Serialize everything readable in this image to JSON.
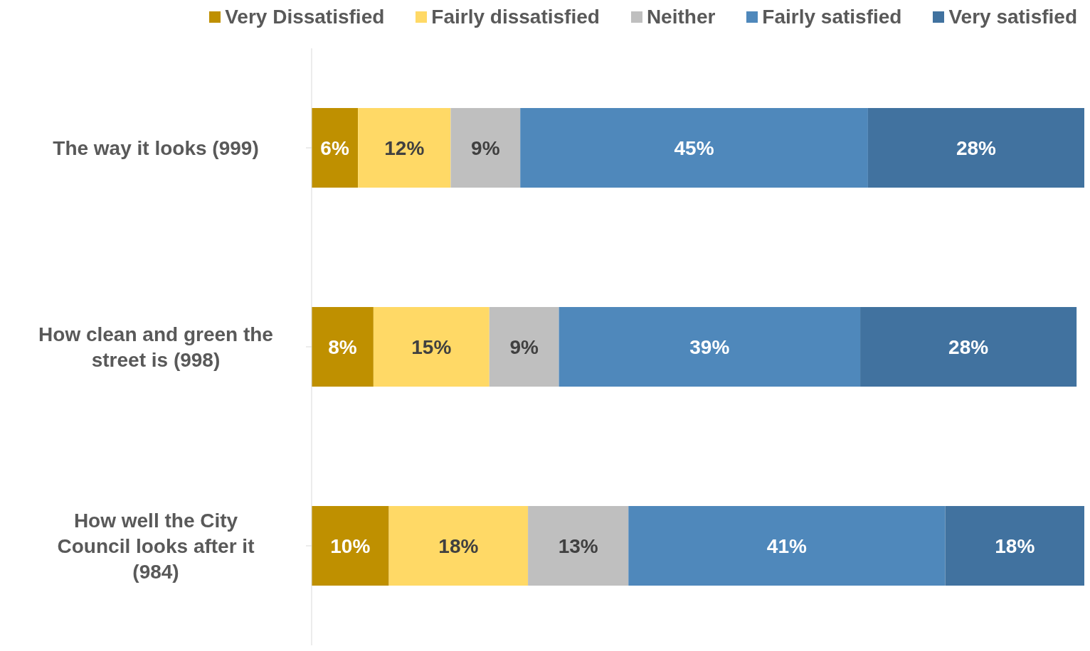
{
  "chart_data": {
    "type": "bar",
    "orientation": "horizontal",
    "stacked": true,
    "categories": [
      "The way it looks (999)",
      "How clean and green the street is (998)",
      "How well the City Council looks after it (984)"
    ],
    "series": [
      {
        "name": "Very Dissatisfied",
        "color": "#bf9000",
        "values": [
          6,
          8,
          10
        ],
        "value_labels": [
          "6%",
          "8%",
          "10%"
        ]
      },
      {
        "name": "Fairly dissatisfied",
        "color": "#ffd966",
        "values": [
          12,
          15,
          18
        ],
        "value_labels": [
          "12%",
          "15%",
          "18%"
        ]
      },
      {
        "name": "Neither",
        "color": "#bfbfbf",
        "values": [
          9,
          9,
          13
        ],
        "value_labels": [
          "9%",
          "9%",
          "13%"
        ]
      },
      {
        "name": "Fairly satisfied",
        "color": "#4f88bb",
        "values": [
          45,
          39,
          41
        ],
        "value_labels": [
          "45%",
          "39%",
          "41%"
        ]
      },
      {
        "name": "Very satisfied",
        "color": "#41729f",
        "values": [
          28,
          28,
          18
        ],
        "value_labels": [
          "28%",
          "28%",
          "18%"
        ]
      }
    ],
    "legend": "top",
    "grid": false
  }
}
